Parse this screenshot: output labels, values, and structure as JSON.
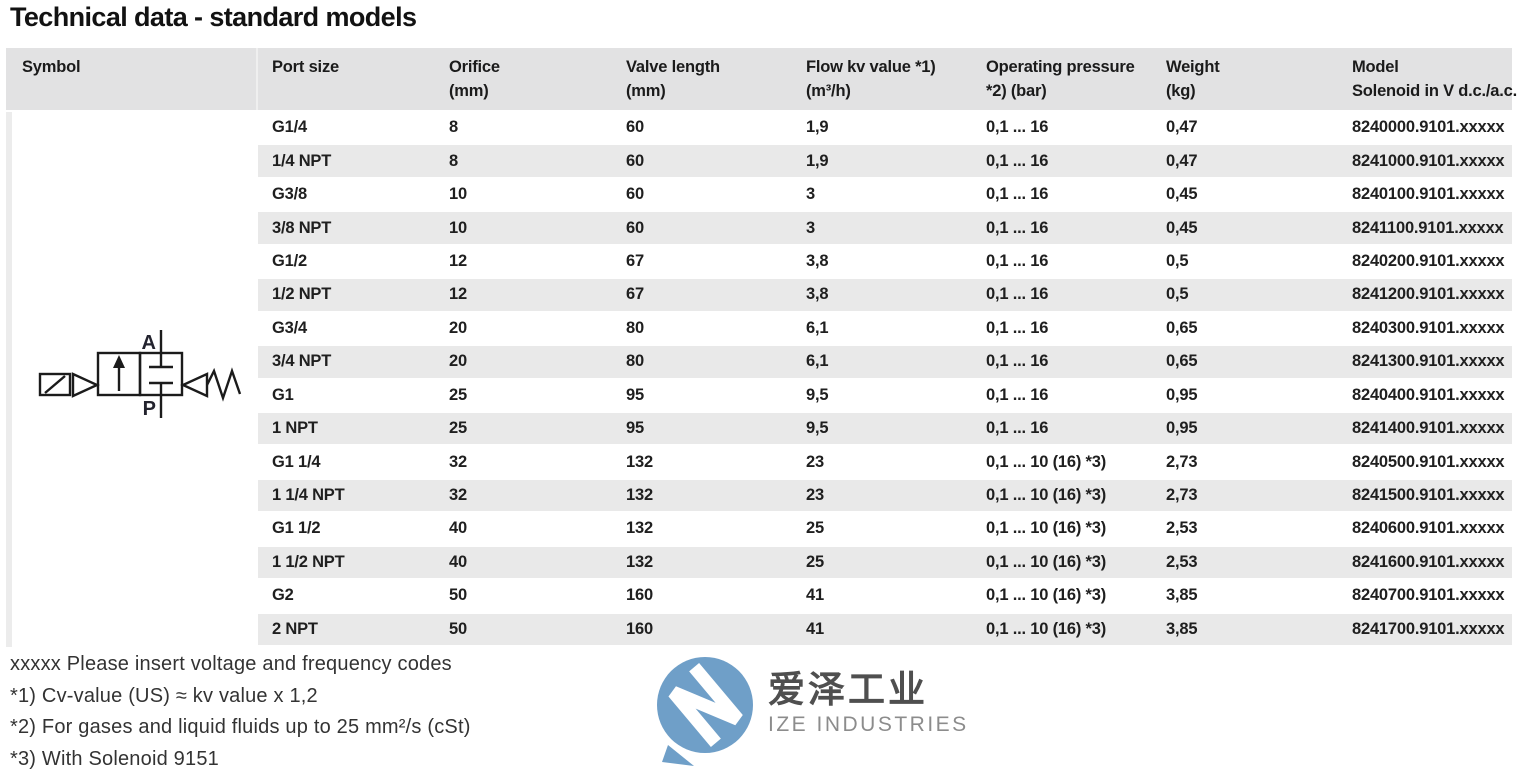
{
  "title": "Technical data - standard models",
  "table": {
    "headers": [
      {
        "line1": "Symbol",
        "line2": ""
      },
      {
        "line1": "Port size",
        "line2": ""
      },
      {
        "line1": "Orifice",
        "line2": "(mm)"
      },
      {
        "line1": "Valve length",
        "line2": "(mm)"
      },
      {
        "line1": "Flow kv value *1)",
        "line2": "(m³/h)"
      },
      {
        "line1": "Operating pressure",
        "line2": "*2) (bar)"
      },
      {
        "line1": "Weight",
        "line2": "(kg)"
      },
      {
        "line1": "Model",
        "line2": "Solenoid in V d.c./a.c."
      }
    ],
    "rows": [
      [
        "G1/4",
        "8",
        "60",
        "1,9",
        "0,1 ... 16",
        "0,47",
        "8240000.9101.xxxxx"
      ],
      [
        "1/4 NPT",
        "8",
        "60",
        "1,9",
        "0,1 ... 16",
        "0,47",
        "8241000.9101.xxxxx"
      ],
      [
        "G3/8",
        "10",
        "60",
        "3",
        "0,1 ... 16",
        "0,45",
        "8240100.9101.xxxxx"
      ],
      [
        "3/8 NPT",
        "10",
        "60",
        "3",
        "0,1 ... 16",
        "0,45",
        "8241100.9101.xxxxx"
      ],
      [
        "G1/2",
        "12",
        "67",
        "3,8",
        "0,1 ... 16",
        "0,5",
        "8240200.9101.xxxxx"
      ],
      [
        "1/2 NPT",
        "12",
        "67",
        "3,8",
        "0,1 ... 16",
        "0,5",
        "8241200.9101.xxxxx"
      ],
      [
        "G3/4",
        "20",
        "80",
        "6,1",
        "0,1 ... 16",
        "0,65",
        "8240300.9101.xxxxx"
      ],
      [
        "3/4 NPT",
        "20",
        "80",
        "6,1",
        "0,1 ... 16",
        "0,65",
        "8241300.9101.xxxxx"
      ],
      [
        "G1",
        "25",
        "95",
        "9,5",
        "0,1 ... 16",
        "0,95",
        "8240400.9101.xxxxx"
      ],
      [
        "1 NPT",
        "25",
        "95",
        "9,5",
        "0,1 ... 16",
        "0,95",
        "8241400.9101.xxxxx"
      ],
      [
        "G1 1/4",
        "32",
        "132",
        "23",
        "0,1 ... 10 (16) *3)",
        "2,73",
        "8240500.9101.xxxxx"
      ],
      [
        "1 1/4 NPT",
        "32",
        "132",
        "23",
        "0,1 ... 10 (16) *3)",
        "2,73",
        "8241500.9101.xxxxx"
      ],
      [
        "G1 1/2",
        "40",
        "132",
        "25",
        "0,1 ... 10 (16) *3)",
        "2,53",
        "8240600.9101.xxxxx"
      ],
      [
        "1 1/2 NPT",
        "40",
        "132",
        "25",
        "0,1 ... 10 (16) *3)",
        "2,53",
        "8241600.9101.xxxxx"
      ],
      [
        "G2",
        "50",
        "160",
        "41",
        "0,1 ... 10 (16) *3)",
        "3,85",
        "8240700.9101.xxxxx"
      ],
      [
        "2 NPT",
        "50",
        "160",
        "41",
        "0,1 ... 10 (16) *3)",
        "3,85",
        "8241700.9101.xxxxx"
      ]
    ]
  },
  "symbol": {
    "type": "2/2-way solenoid valve symbol",
    "port_top": "A",
    "port_bottom": "P"
  },
  "footnotes": [
    "xxxxx Please insert voltage and frequency codes",
    "*1) Cv-value (US) ≈ kv value x 1,2",
    "*2) For gases and liquid fluids up to 25 mm²/s (cSt)",
    "*3) With Solenoid 9151"
  ],
  "watermark": {
    "cn": "爱泽工业",
    "en": "IZE INDUSTRIES"
  },
  "colors": {
    "header_bg": "#e2e2e3",
    "stripe_bg": "#e9e9e9",
    "left_strip": "#ececec",
    "text": "#1f1f1f",
    "footnote_text": "#333333",
    "logo_blue": "#6f9fc8",
    "wm_cn_text": "#4f4f4f",
    "wm_en_text": "#8c8c8c"
  }
}
